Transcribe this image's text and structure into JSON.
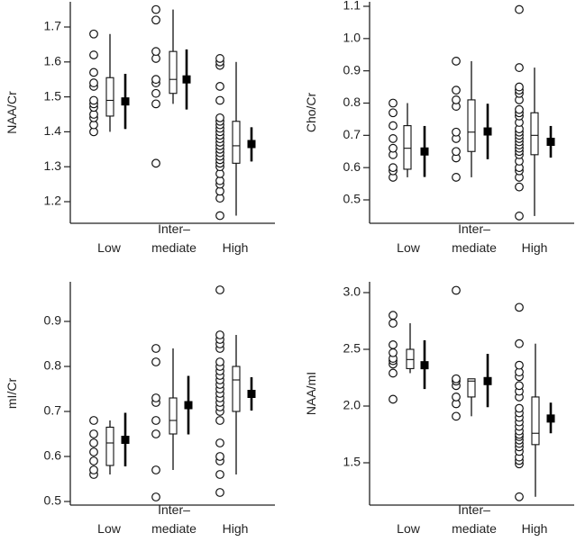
{
  "chart_data": [
    {
      "type": "scatter",
      "subtype": "dot-box-mean-ci",
      "ylabel": "NAA/Cr",
      "xlabel": "",
      "categories": [
        "Low",
        "Inter–\nmediate",
        "High"
      ],
      "category_lines": [
        [
          "Low"
        ],
        [
          "Inter–",
          "mediate"
        ],
        [
          "High"
        ]
      ],
      "yticks": [
        1.2,
        1.3,
        1.4,
        1.5,
        1.6,
        1.7
      ],
      "ytick_labels": [
        "1.2",
        "1.3",
        "1.4",
        "1.5",
        "1.6",
        "1.7"
      ],
      "ylim": [
        1.13,
        1.78
      ],
      "groups": [
        {
          "name": "Low",
          "points": [
            1.4,
            1.42,
            1.44,
            1.45,
            1.47,
            1.48,
            1.49,
            1.53,
            1.54,
            1.57,
            1.62,
            1.68
          ],
          "box": {
            "min": 1.4,
            "q1": 1.445,
            "median": 1.49,
            "q3": 1.555,
            "max": 1.68
          },
          "mean": 1.487,
          "ci": [
            1.408,
            1.566
          ]
        },
        {
          "name": "Intermediate",
          "points": [
            1.31,
            1.48,
            1.51,
            1.54,
            1.55,
            1.61,
            1.63,
            1.72,
            1.75
          ],
          "box": {
            "min": 1.48,
            "q1": 1.51,
            "median": 1.55,
            "q3": 1.63,
            "max": 1.75
          },
          "mean": 1.55,
          "ci": [
            1.464,
            1.636
          ]
        },
        {
          "name": "High",
          "points": [
            1.16,
            1.21,
            1.23,
            1.25,
            1.26,
            1.28,
            1.3,
            1.31,
            1.32,
            1.33,
            1.34,
            1.35,
            1.36,
            1.37,
            1.38,
            1.39,
            1.4,
            1.41,
            1.42,
            1.43,
            1.44,
            1.49,
            1.53,
            1.59,
            1.6,
            1.61
          ],
          "box": {
            "min": 1.16,
            "q1": 1.31,
            "median": 1.36,
            "q3": 1.43,
            "max": 1.6
          },
          "mean": 1.365,
          "ci": [
            1.315,
            1.413
          ]
        }
      ]
    },
    {
      "type": "scatter",
      "subtype": "dot-box-mean-ci",
      "ylabel": "Cho/Cr",
      "xlabel": "",
      "categories": [
        "Low",
        "Inter–\nmediate",
        "High"
      ],
      "category_lines": [
        [
          "Low"
        ],
        [
          "Inter–",
          "mediate"
        ],
        [
          "High"
        ]
      ],
      "yticks": [
        0.5,
        0.6,
        0.7,
        0.8,
        0.9,
        1.0,
        1.1
      ],
      "ytick_labels": [
        "0.5",
        "0.6",
        "0.7",
        "0.8",
        "0.9",
        "1.0",
        "1.1"
      ],
      "ylim": [
        0.43,
        1.12
      ],
      "groups": [
        {
          "name": "Low",
          "points": [
            0.57,
            0.59,
            0.6,
            0.64,
            0.66,
            0.69,
            0.73,
            0.77,
            0.8
          ],
          "box": {
            "min": 0.57,
            "q1": 0.595,
            "median": 0.66,
            "q3": 0.73,
            "max": 0.8
          },
          "mean": 0.65,
          "ci": [
            0.571,
            0.729
          ]
        },
        {
          "name": "Intermediate",
          "points": [
            0.57,
            0.63,
            0.65,
            0.69,
            0.71,
            0.79,
            0.81,
            0.84,
            0.93
          ],
          "box": {
            "min": 0.57,
            "q1": 0.65,
            "median": 0.71,
            "q3": 0.81,
            "max": 0.93
          },
          "mean": 0.712,
          "ci": [
            0.626,
            0.798
          ]
        },
        {
          "name": "High",
          "points": [
            0.45,
            0.54,
            0.57,
            0.59,
            0.6,
            0.62,
            0.64,
            0.65,
            0.66,
            0.67,
            0.68,
            0.69,
            0.7,
            0.71,
            0.72,
            0.74,
            0.76,
            0.77,
            0.78,
            0.81,
            0.83,
            0.84,
            0.85,
            0.91,
            1.09
          ],
          "box": {
            "min": 0.45,
            "q1": 0.64,
            "median": 0.7,
            "q3": 0.77,
            "max": 0.91
          },
          "mean": 0.68,
          "ci": [
            0.631,
            0.729
          ]
        }
      ]
    },
    {
      "type": "scatter",
      "subtype": "dot-box-mean-ci",
      "ylabel": "mI/Cr",
      "xlabel": "",
      "categories": [
        "Low",
        "Inter–\nmediate",
        "High"
      ],
      "category_lines": [
        [
          "Low"
        ],
        [
          "Inter–",
          "mediate"
        ],
        [
          "High"
        ]
      ],
      "yticks": [
        0.5,
        0.6,
        0.7,
        0.8,
        0.9
      ],
      "ytick_labels": [
        "0.5",
        "0.6",
        "0.7",
        "0.8",
        "0.9"
      ],
      "ylim": [
        0.49,
        0.99
      ],
      "groups": [
        {
          "name": "Low",
          "points": [
            0.56,
            0.57,
            0.59,
            0.61,
            0.63,
            0.65,
            0.68
          ],
          "box": {
            "min": 0.56,
            "q1": 0.58,
            "median": 0.63,
            "q3": 0.665,
            "max": 0.68
          },
          "mean": 0.637,
          "ci": [
            0.578,
            0.697
          ]
        },
        {
          "name": "Intermediate",
          "points": [
            0.51,
            0.57,
            0.65,
            0.68,
            0.72,
            0.73,
            0.81,
            0.84
          ],
          "box": {
            "min": 0.57,
            "q1": 0.65,
            "median": 0.68,
            "q3": 0.73,
            "max": 0.84
          },
          "mean": 0.714,
          "ci": [
            0.649,
            0.779
          ]
        },
        {
          "name": "High",
          "points": [
            0.52,
            0.56,
            0.59,
            0.6,
            0.63,
            0.68,
            0.7,
            0.71,
            0.72,
            0.73,
            0.74,
            0.75,
            0.76,
            0.77,
            0.78,
            0.79,
            0.8,
            0.81,
            0.84,
            0.85,
            0.86,
            0.87,
            0.97
          ],
          "box": {
            "min": 0.56,
            "q1": 0.7,
            "median": 0.77,
            "q3": 0.8,
            "max": 0.87
          },
          "mean": 0.739,
          "ci": [
            0.702,
            0.776
          ]
        }
      ]
    },
    {
      "type": "scatter",
      "subtype": "dot-box-mean-ci",
      "ylabel": "NAA/mI",
      "xlabel": "",
      "categories": [
        "Low",
        "Inter–\nmediate",
        "High"
      ],
      "category_lines": [
        [
          "Low"
        ],
        [
          "Inter–",
          "mediate"
        ],
        [
          "High"
        ]
      ],
      "yticks": [
        1.5,
        2.0,
        2.5,
        3.0
      ],
      "ytick_labels": [
        "1.5",
        "2.0",
        "2.5",
        "3.0"
      ],
      "ylim": [
        1.15,
        3.1
      ],
      "groups": [
        {
          "name": "Low",
          "points": [
            2.06,
            2.29,
            2.37,
            2.4,
            2.42,
            2.47,
            2.54,
            2.73,
            2.8
          ],
          "box": {
            "min": 2.29,
            "q1": 2.33,
            "median": 2.41,
            "q3": 2.5,
            "max": 2.73
          },
          "mean": 2.36,
          "ci": [
            2.15,
            2.58
          ]
        },
        {
          "name": "Intermediate",
          "points": [
            1.91,
            2.02,
            2.08,
            2.18,
            2.22,
            2.24,
            3.02
          ],
          "box": {
            "min": 1.91,
            "q1": 2.08,
            "median": 2.22,
            "q3": 2.24,
            "max": 2.24
          },
          "mean": 2.22,
          "ci": [
            1.99,
            2.46
          ]
        },
        {
          "name": "High",
          "points": [
            1.2,
            1.49,
            1.52,
            1.55,
            1.6,
            1.64,
            1.67,
            1.7,
            1.73,
            1.75,
            1.78,
            1.82,
            1.86,
            1.9,
            1.94,
            1.98,
            2.08,
            2.13,
            2.18,
            2.26,
            2.3,
            2.36,
            2.55,
            2.87
          ],
          "box": {
            "min": 1.2,
            "q1": 1.66,
            "median": 1.76,
            "q3": 2.08,
            "max": 2.55
          },
          "mean": 1.89,
          "ci": [
            1.76,
            2.03
          ]
        }
      ]
    }
  ]
}
